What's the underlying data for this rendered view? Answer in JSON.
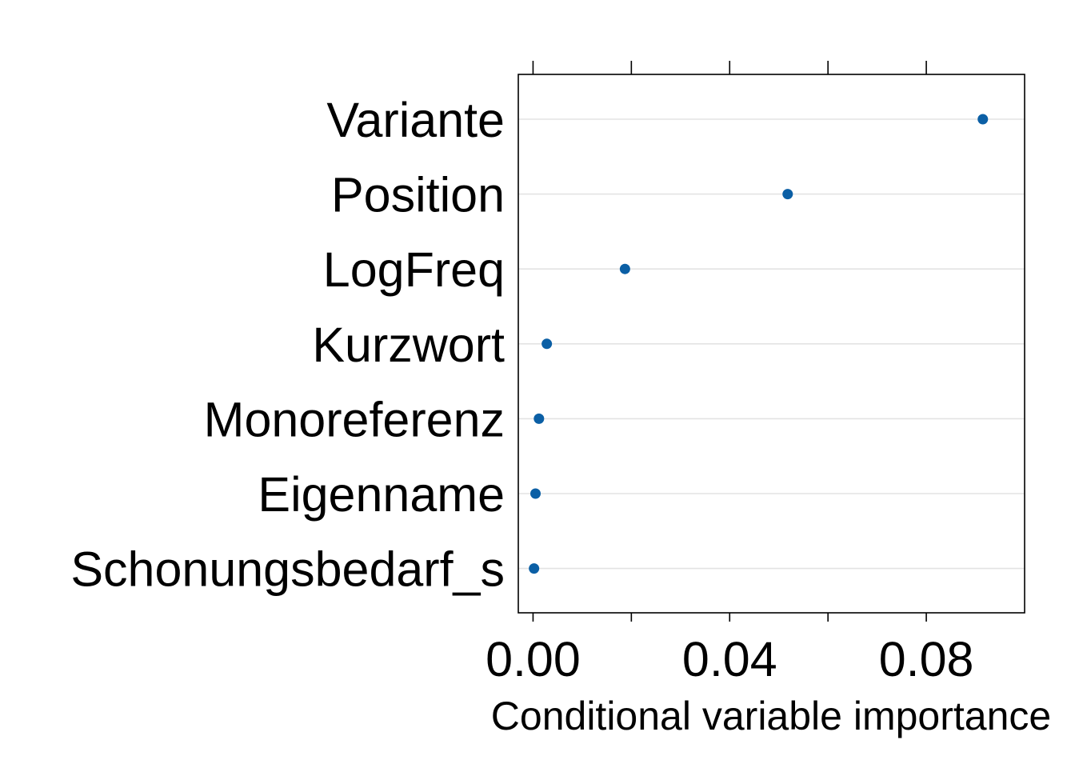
{
  "chart_data": {
    "type": "scatter",
    "title": "",
    "xlabel": "Conditional variable importance",
    "ylabel": "",
    "xlim": [
      -0.003,
      0.1
    ],
    "xticks": [
      0.0,
      0.02,
      0.04,
      0.06,
      0.08
    ],
    "xtick_labels": [
      "0.00",
      "",
      "0.04",
      "",
      "0.08"
    ],
    "categories": [
      "Variante",
      "Position",
      "LogFreq",
      "Kurzwort",
      "Monoreferenz",
      "Eigenname",
      "Schonungsbedarf_s"
    ],
    "values": [
      0.0915,
      0.0518,
      0.0187,
      0.0028,
      0.0012,
      0.0005,
      0.0002
    ],
    "grid": true,
    "point_color": "#0b5fa5",
    "gridline_color": "#e3e3e3"
  }
}
